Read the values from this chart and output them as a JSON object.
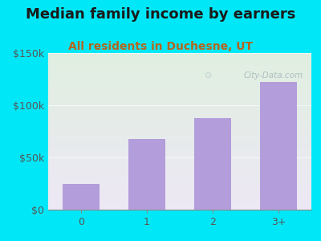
{
  "title": "Median family income by earners",
  "subtitle": "All residents in Duchesne, UT",
  "categories": [
    "0",
    "1",
    "2",
    "3+"
  ],
  "values": [
    25000,
    68000,
    88000,
    122000
  ],
  "bar_color": "#b39ddb",
  "title_fontsize": 13,
  "subtitle_fontsize": 10,
  "subtitle_color": "#b5651d",
  "title_color": "#1a1a1a",
  "background_outer": "#00e8f8",
  "background_inner_top": "#e0efe0",
  "background_inner_bottom": "#ede8f5",
  "ylim": [
    0,
    150000
  ],
  "yticks": [
    0,
    50000,
    100000,
    150000
  ],
  "ytick_labels": [
    "$0",
    "$50k",
    "$100k",
    "$150k"
  ],
  "watermark": "City-Data.com",
  "watermark_color": "#9ab0b8"
}
